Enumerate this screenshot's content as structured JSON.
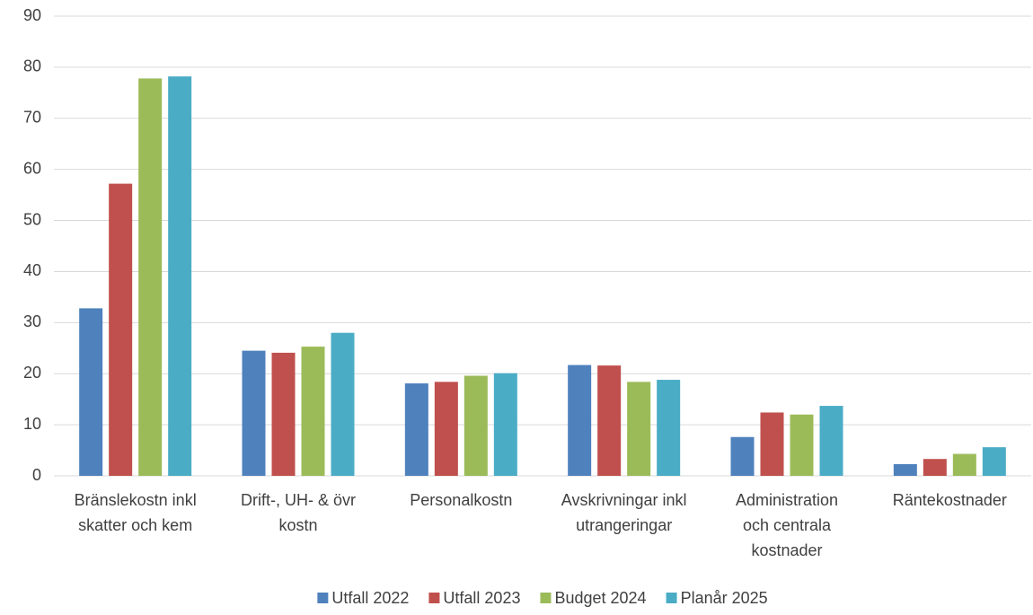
{
  "chart_data": {
    "type": "bar",
    "categories": [
      [
        "Bränslekostn inkl",
        "skatter och kem"
      ],
      [
        "Drift-, UH- & övr",
        "kostn"
      ],
      [
        "Personalkostn"
      ],
      [
        "Avskrivningar inkl",
        "utrangeringar"
      ],
      [
        "Administration",
        "och centrala",
        "kostnader"
      ],
      [
        "Räntekostnader"
      ]
    ],
    "series": [
      {
        "name": "Utfall 2022",
        "color": "#4f81bd",
        "values": [
          32.8,
          24.5,
          18.1,
          21.7,
          7.6,
          2.3
        ]
      },
      {
        "name": "Utfall 2023",
        "color": "#c0504d",
        "values": [
          57.2,
          24.1,
          18.4,
          21.6,
          12.4,
          3.3
        ]
      },
      {
        "name": "Budget 2024",
        "color": "#9bbb59",
        "values": [
          77.8,
          25.3,
          19.6,
          18.4,
          12.0,
          4.3
        ]
      },
      {
        "name": "Planår 2025",
        "color": "#4bacc6",
        "values": [
          78.2,
          28.0,
          20.1,
          18.8,
          13.7,
          5.6
        ]
      }
    ],
    "ylim": [
      0,
      90
    ],
    "yticks": [
      0,
      10,
      20,
      30,
      40,
      50,
      60,
      70,
      80,
      90
    ],
    "grid": true,
    "legend": "bottom"
  }
}
